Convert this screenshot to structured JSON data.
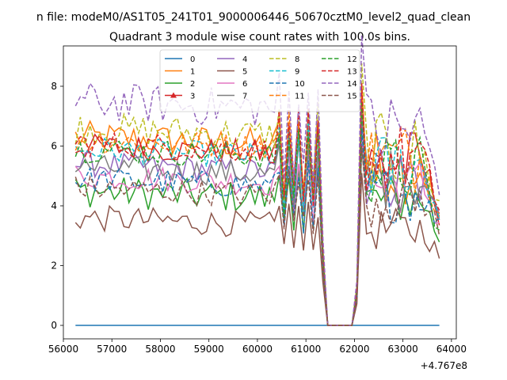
{
  "figure": {
    "suptitle": "n file: modeM0/AS1T05_241T01_9000006446_50670cztM0_level2_quad_clean"
  },
  "chart_data": {
    "type": "line",
    "title": "Quadrant 3 module wise count rates with 100.0s bins.",
    "xlabel": "",
    "ylabel": "",
    "x_offset_label": "+4.767e8",
    "xlim": [
      56000,
      64100
    ],
    "ylim": [
      -0.45,
      9.35
    ],
    "xticks": [
      56000,
      57000,
      58000,
      59000,
      60000,
      61000,
      62000,
      63000,
      64000
    ],
    "xtick_labels": [
      "56000",
      "57000",
      "58000",
      "59000",
      "60000",
      "61000",
      "62000",
      "63000",
      "64000"
    ],
    "yticks": [
      0,
      2,
      4,
      6,
      8
    ],
    "ytick_labels": [
      "0",
      "2",
      "4",
      "6",
      "8"
    ],
    "x_start": 56250,
    "x_step": 100,
    "points": 76,
    "gap_range": [
      61450,
      61950
    ],
    "legend": {
      "position": "upper-center",
      "columns": 4
    },
    "series": [
      {
        "name": "0",
        "color": "#1f77b4",
        "dash": "solid",
        "marker": "none",
        "base": 0.0,
        "amp": 0.0,
        "active_level": 0.0,
        "end": 0.0
      },
      {
        "name": "1",
        "color": "#ff7f0e",
        "dash": "solid",
        "marker": "none",
        "base": 6.3,
        "amp": 0.25,
        "active_level": 5.3,
        "end": 3.6
      },
      {
        "name": "2",
        "color": "#2ca02c",
        "dash": "solid",
        "marker": "none",
        "base": 4.5,
        "amp": 0.25,
        "active_level": 4.2,
        "end": 2.9
      },
      {
        "name": "3",
        "color": "#d62728",
        "dash": "solid",
        "marker": "tri",
        "base": 6.0,
        "amp": 0.2,
        "active_level": 5.4,
        "end": 3.9
      },
      {
        "name": "4",
        "color": "#9467bd",
        "dash": "solid",
        "marker": "none",
        "base": 5.4,
        "amp": 0.2,
        "active_level": 5.0,
        "end": 3.6
      },
      {
        "name": "5",
        "color": "#8c564b",
        "dash": "solid",
        "marker": "none",
        "base": 3.6,
        "amp": 0.2,
        "active_level": 3.2,
        "end": 2.3
      },
      {
        "name": "6",
        "color": "#e377c2",
        "dash": "solid",
        "marker": "none",
        "base": 5.0,
        "amp": 0.2,
        "active_level": 4.7,
        "end": 3.4
      },
      {
        "name": "7",
        "color": "#7f7f7f",
        "dash": "solid",
        "marker": "none",
        "base": 5.3,
        "amp": 0.2,
        "active_level": 4.9,
        "end": 3.5
      },
      {
        "name": "8",
        "color": "#bcbd22",
        "dash": "dashed",
        "marker": "none",
        "base": 6.6,
        "amp": 0.25,
        "active_level": 5.8,
        "end": 4.0
      },
      {
        "name": "9",
        "color": "#17becf",
        "dash": "dashed",
        "marker": "none",
        "base": 5.9,
        "amp": 0.2,
        "active_level": 5.3,
        "end": 3.6
      },
      {
        "name": "10",
        "color": "#1f77b4",
        "dash": "dashed",
        "marker": "none",
        "base": 4.9,
        "amp": 0.2,
        "active_level": 4.4,
        "end": 3.3
      },
      {
        "name": "11",
        "color": "#ff7f0e",
        "dash": "dashed",
        "marker": "none",
        "base": 6.2,
        "amp": 0.2,
        "active_level": 5.6,
        "end": 3.8
      },
      {
        "name": "12",
        "color": "#2ca02c",
        "dash": "dashed",
        "marker": "none",
        "base": 5.9,
        "amp": 0.2,
        "active_level": 5.2,
        "end": 3.0
      },
      {
        "name": "13",
        "color": "#d62728",
        "dash": "dashed",
        "marker": "none",
        "base": 6.1,
        "amp": 0.2,
        "active_level": 5.6,
        "end": 3.9
      },
      {
        "name": "14",
        "color": "#9467bd",
        "dash": "dashed",
        "marker": "none",
        "base": 7.5,
        "amp": 0.3,
        "active_level": 6.5,
        "end": 5.0
      },
      {
        "name": "15",
        "color": "#8c564b",
        "dash": "dashed",
        "marker": "none",
        "base": 4.6,
        "amp": 0.2,
        "active_level": 4.2,
        "end": 3.2
      }
    ]
  }
}
